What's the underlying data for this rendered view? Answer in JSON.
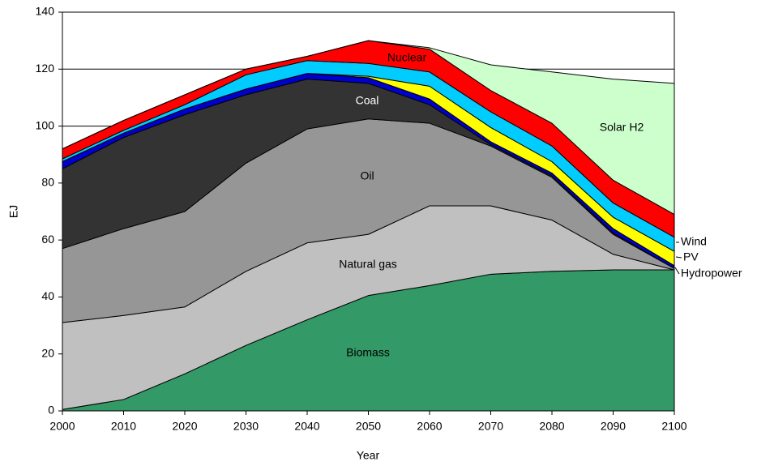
{
  "chart_data": {
    "type": "stacked_area",
    "x_label": "Year",
    "y_label": "EJ",
    "x": [
      2000,
      2010,
      2020,
      2030,
      2040,
      2050,
      2060,
      2070,
      2080,
      2090,
      2100
    ],
    "xlim": [
      2000,
      2100
    ],
    "xticks": [
      2000,
      2010,
      2020,
      2030,
      2040,
      2050,
      2060,
      2070,
      2080,
      2090,
      2100
    ],
    "ylim": [
      0,
      140
    ],
    "yticks": [
      0,
      20,
      40,
      60,
      80,
      100,
      120,
      140
    ],
    "grid": true,
    "series": [
      {
        "name": "Biomass",
        "color": "#339966",
        "values": [
          0.5,
          4,
          13,
          23,
          32,
          40.5,
          44,
          48,
          49,
          49.5,
          49.5
        ]
      },
      {
        "name": "Natural gas",
        "color": "#c0c0c0",
        "values": [
          30.5,
          29.5,
          23.5,
          26,
          27,
          21.5,
          28,
          24,
          18,
          5.5,
          0
        ]
      },
      {
        "name": "Oil",
        "color": "#969696",
        "values": [
          26,
          30.5,
          33.5,
          38,
          40,
          40.5,
          29,
          21,
          15,
          7,
          0.5
        ]
      },
      {
        "name": "Coal",
        "color": "#333333",
        "values": [
          28,
          32,
          34,
          24,
          17.5,
          12.5,
          6.5,
          0.5,
          0.5,
          0.5,
          0
        ]
      },
      {
        "name": "Hydropower",
        "color": "#0000cc",
        "values": [
          2.5,
          1.5,
          2,
          2,
          2,
          2,
          2,
          1,
          1,
          1.5,
          1
        ]
      },
      {
        "name": "PV",
        "color": "#ffff00",
        "values": [
          0,
          0,
          0,
          0,
          0,
          0.5,
          4.5,
          5,
          4,
          4,
          5
        ]
      },
      {
        "name": "Wind",
        "color": "#00ccff",
        "values": [
          1,
          1,
          1.5,
          5,
          4.5,
          4.5,
          5,
          5.5,
          5.5,
          5,
          5
        ]
      },
      {
        "name": "Nuclear",
        "color": "#ff0000",
        "values": [
          3.5,
          3.5,
          3.5,
          2,
          1.5,
          8,
          8,
          7.5,
          8,
          8,
          8
        ]
      },
      {
        "name": "Solar H2",
        "color": "#ccffcc",
        "values": [
          0,
          0,
          0,
          0,
          0,
          0,
          0.5,
          9,
          18,
          35.5,
          46
        ]
      }
    ]
  }
}
